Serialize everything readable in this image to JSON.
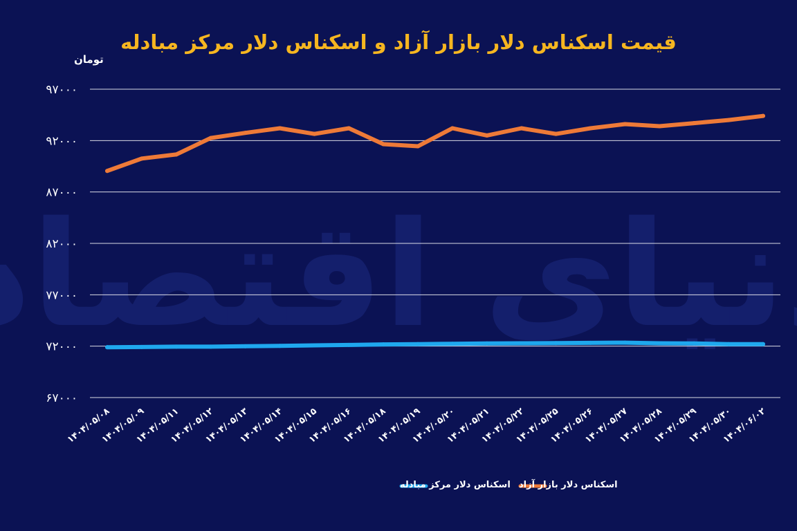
{
  "chart_data": {
    "type": "line",
    "title": "قیمت اسکناس دلار بازار آزاد و اسکناس دلار مرکز مبادله",
    "ylabel": "تومان",
    "xlabel": "",
    "ylim": [
      67000,
      97000
    ],
    "yticks": [
      97000,
      92000,
      87000,
      82000,
      77000,
      72000,
      67000
    ],
    "ytick_labels": [
      "۹۷۰۰۰",
      "۹۲۰۰۰",
      "۸۷۰۰۰",
      "۸۲۰۰۰",
      "۷۷۰۰۰",
      "۷۲۰۰۰",
      "۶۷۰۰۰"
    ],
    "grid": true,
    "legend_position": "bottom",
    "categories": [
      "۱۴۰۴/۰۵/۰۸",
      "۱۴۰۴/۰۵/۰۹",
      "۱۴۰۴/۰۵/۱۱",
      "۱۴۰۴/۰۵/۱۲",
      "۱۴۰۴/۰۵/۱۳",
      "۱۴۰۴/۰۵/۱۴",
      "۱۴۰۴/۰۵/۱۵",
      "۱۴۰۴/۰۵/۱۶",
      "۱۴۰۴/۰۵/۱۸",
      "۱۴۰۴/۰۵/۱۹",
      "۱۴۰۴/۰۵/۲۰",
      "۱۴۰۴/۰۵/۲۱",
      "۱۴۰۴/۰۵/۲۲",
      "۱۴۰۴/۰۵/۲۵",
      "۱۴۰۴/۰۵/۲۶",
      "۱۴۰۴/۰۵/۲۷",
      "۱۴۰۴/۰۵/۲۸",
      "۱۴۰۴/۰۵/۲۹",
      "۱۴۰۴/۰۵/۳۰",
      "۱۴۰۴/۰۶/۰۲"
    ],
    "series": [
      {
        "name": "اسکناس دلار بازار آزاد",
        "color": "#ee7a38",
        "values": [
          89050,
          90250,
          90650,
          92250,
          92750,
          93200,
          92650,
          93200,
          91650,
          91450,
          93200,
          92500,
          93200,
          92650,
          93200,
          93600,
          93400,
          93700,
          94000,
          94400
        ]
      },
      {
        "name": "اسکناس دلار مرکز مبادله",
        "color": "#1fa8ee",
        "values": [
          71900,
          71920,
          71950,
          71950,
          71990,
          72030,
          72080,
          72120,
          72170,
          72200,
          72230,
          72260,
          72280,
          72300,
          72320,
          72340,
          72280,
          72260,
          72200,
          72200
        ]
      }
    ]
  },
  "watermark": "دنیای اقتصاد"
}
